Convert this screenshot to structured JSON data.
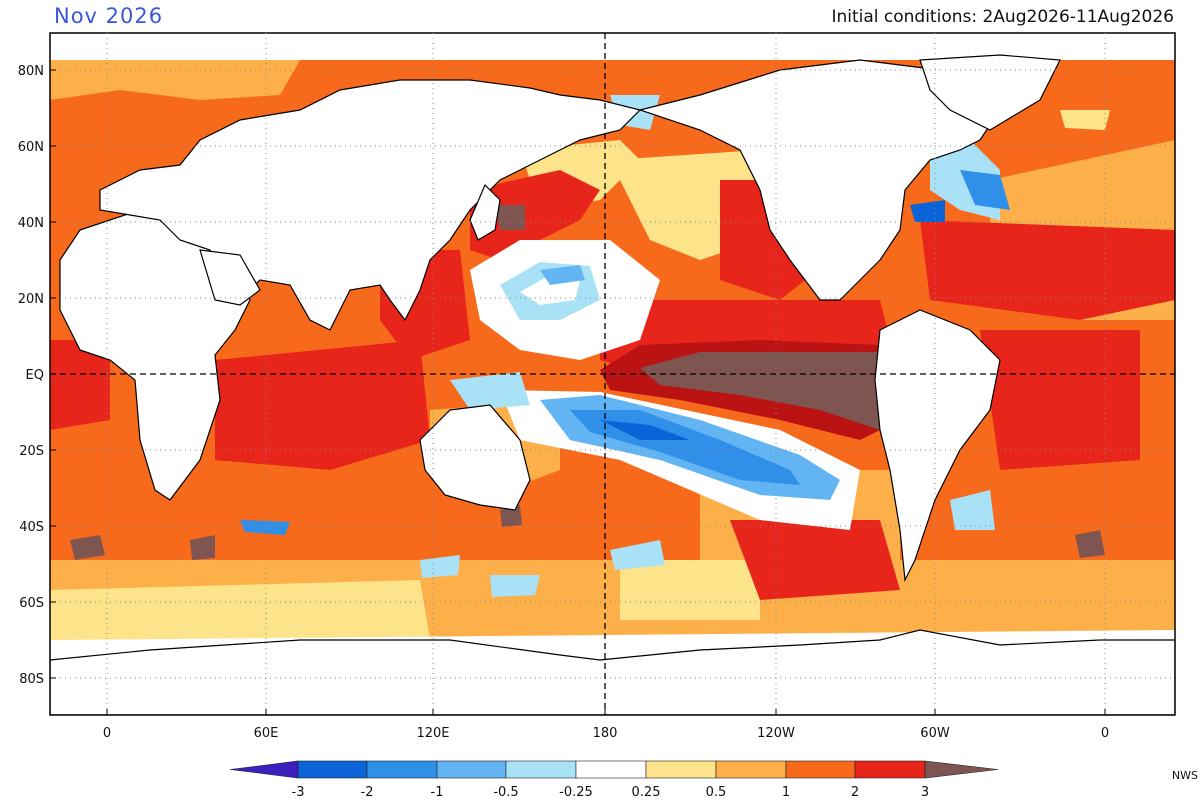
{
  "header": {
    "title": "Nov 2026",
    "conditions": "Initial conditions: 2Aug2026-11Aug2026"
  },
  "map": {
    "lat_labels": [
      "80N",
      "60N",
      "40N",
      "20N",
      "EQ",
      "20S",
      "40S",
      "60S",
      "80S"
    ],
    "lon_labels": [
      "0",
      "60E",
      "120E",
      "180",
      "120W",
      "60W",
      "0"
    ],
    "reference_lines": [
      "EQ",
      "180"
    ]
  },
  "colorbar": {
    "labels": [
      "-3",
      "-2",
      "-1",
      "-0.5",
      "-0.25",
      "0.25",
      "0.5",
      "1",
      "2",
      "3"
    ],
    "colors": [
      "#3b1fbf",
      "#0b63d8",
      "#2f8fe9",
      "#62b4f2",
      "#a9e2f7",
      "#ffffff",
      "#fde38a",
      "#fdb04a",
      "#f76a1c",
      "#e8251a",
      "#bb1313",
      "#7e5550"
    ]
  },
  "credit": "NWS"
}
